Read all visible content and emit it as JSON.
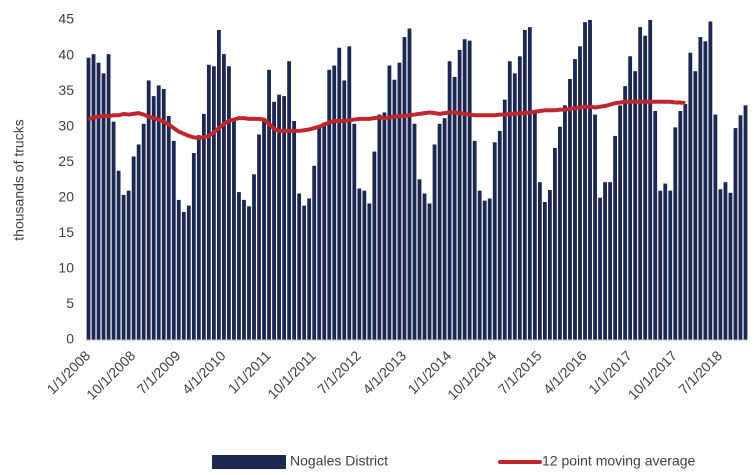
{
  "chart_data": {
    "type": "bar-line",
    "ylabel": "thousands of trucks",
    "categories": [
      "1/1/2008",
      null,
      null,
      null,
      null,
      null,
      null,
      null,
      null,
      "10/1/2008",
      null,
      null,
      null,
      null,
      null,
      null,
      null,
      null,
      "7/1/2009",
      null,
      null,
      null,
      null,
      null,
      null,
      null,
      null,
      "4/1/2010",
      null,
      null,
      null,
      null,
      null,
      null,
      null,
      null,
      "1/1/2011",
      null,
      null,
      null,
      null,
      null,
      null,
      null,
      null,
      "10/1/2011",
      null,
      null,
      null,
      null,
      null,
      null,
      null,
      null,
      "7/1/2012",
      null,
      null,
      null,
      null,
      null,
      null,
      null,
      null,
      "4/1/2013",
      null,
      null,
      null,
      null,
      null,
      null,
      null,
      null,
      "1/1/2014",
      null,
      null,
      null,
      null,
      null,
      null,
      null,
      null,
      "10/1/2014",
      null,
      null,
      null,
      null,
      null,
      null,
      null,
      null,
      "7/1/2015",
      null,
      null,
      null,
      null,
      null,
      null,
      null,
      null,
      "4/1/2016",
      null,
      null,
      null,
      null,
      null,
      null,
      null,
      null,
      "1/1/2017",
      null,
      null,
      null,
      null,
      null,
      null,
      null,
      null,
      "10/1/2017",
      null,
      null,
      null,
      null,
      null,
      null,
      null,
      null,
      "7/1/2018",
      null,
      null,
      null,
      null,
      null
    ],
    "series": [
      {
        "name": "Nogales District",
        "kind": "bar",
        "color": "#1c2752",
        "values": [
          39.7,
          40.2,
          39,
          37.5,
          40.2,
          30.7,
          23.8,
          20.4,
          21,
          25.8,
          27.5,
          30.4,
          36.5,
          34.3,
          35.8,
          35.3,
          31.5,
          28,
          19.7,
          18,
          18.9,
          26.3,
          28.8,
          31.8,
          38.7,
          38.5,
          43.6,
          40.2,
          38.5,
          31,
          20.8,
          19.7,
          18.8,
          23.3,
          28.9,
          31,
          38,
          33.5,
          34.5,
          34.3,
          39.2,
          30.8,
          20.6,
          18.9,
          19.9,
          24.5,
          29.8,
          30.6,
          38,
          38.6,
          41.1,
          36.5,
          41.3,
          30.4,
          21.3,
          21,
          19.2,
          26.5,
          31.7,
          32,
          38.6,
          36.6,
          39,
          42.6,
          43.8,
          30.4,
          22.6,
          20.6,
          19.2,
          27.5,
          30.4,
          31.2,
          39.2,
          37,
          40.8,
          42.3,
          42.1,
          28,
          21,
          19.6,
          19.9,
          27.8,
          29.4,
          33.8,
          39.2,
          37.5,
          39.9,
          43.6,
          44,
          32,
          22.2,
          19.4,
          21.1,
          27,
          30,
          33,
          36.7,
          39.5,
          41.3,
          44.7,
          45,
          31.7,
          20,
          22.2,
          22.2,
          28.7,
          33,
          35.7,
          39.9,
          37.8,
          44,
          42.8,
          45,
          32.2,
          21,
          22,
          21,
          29.9,
          32.2,
          33.2,
          40.4,
          37.8,
          42.6,
          42,
          44.8,
          31.7,
          21.2,
          22.2,
          20.7,
          29.8,
          31.6,
          33
        ]
      },
      {
        "name": "12 point moving average",
        "kind": "line",
        "color": "#c0272d",
        "values": [
          31.0,
          31.3,
          31.4,
          31.5,
          31.5,
          31.6,
          31.6,
          31.8,
          31.7,
          31.8,
          31.9,
          31.7,
          31.4,
          31.2,
          31.0,
          30.7,
          30.3,
          29.8,
          29.3,
          29.0,
          28.7,
          28.5,
          28.4,
          28.5,
          28.7,
          29.2,
          29.8,
          30.4,
          30.8,
          31.0,
          31.2,
          31.2,
          31.1,
          31.1,
          31.1,
          31.0,
          30.4,
          29.7,
          29.4,
          29.4,
          29.4,
          29.4,
          29.4,
          29.5,
          29.6,
          29.8,
          30.0,
          30.3,
          30.6,
          30.8,
          30.8,
          30.8,
          30.9,
          31.0,
          31.1,
          31.1,
          31.1,
          31.2,
          31.3,
          31.2,
          31.3,
          31.4,
          31.5,
          31.5,
          31.6,
          31.7,
          31.8,
          31.9,
          32.0,
          31.9,
          31.8,
          31.9,
          32.0,
          32.0,
          31.9,
          31.8,
          31.7,
          31.6,
          31.6,
          31.6,
          31.6,
          31.6,
          31.7,
          31.7,
          31.8,
          31.8,
          31.9,
          31.9,
          32.0,
          32.1,
          32.2,
          32.3,
          32.3,
          32.3,
          32.4,
          32.4,
          32.5,
          32.6,
          32.7,
          32.8,
          32.8,
          32.7,
          32.8,
          32.9,
          33.1,
          33.3,
          33.4,
          33.5,
          33.5,
          33.5,
          33.5,
          33.5,
          33.5,
          33.5,
          33.5,
          33.5,
          33.5,
          33.4,
          33.4,
          33.3,
          null,
          null,
          null,
          null,
          null,
          null,
          null,
          null,
          null,
          null,
          null,
          null
        ]
      }
    ],
    "ylim": [
      0,
      45
    ],
    "yticks": [
      0,
      5,
      10,
      15,
      20,
      25,
      30,
      35,
      40,
      45
    ],
    "grid": false,
    "legend": "bottom"
  }
}
